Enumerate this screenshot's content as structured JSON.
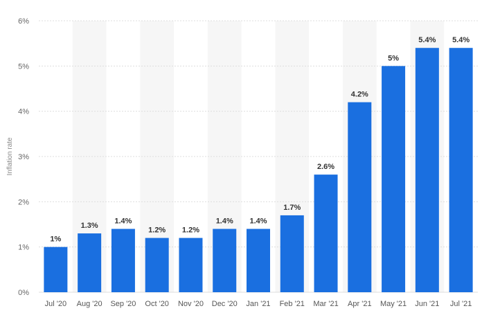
{
  "chart_data": {
    "type": "bar",
    "title": "",
    "xlabel": "",
    "ylabel": "Inflation rate",
    "categories": [
      "Jul '20",
      "Aug '20",
      "Sep '20",
      "Oct '20",
      "Nov '20",
      "Dec '20",
      "Jan '21",
      "Feb '21",
      "Mar '21",
      "Apr '21",
      "May '21",
      "Jun '21",
      "Jul '21"
    ],
    "values": [
      1,
      1.3,
      1.4,
      1.2,
      1.2,
      1.4,
      1.4,
      1.7,
      2.6,
      4.2,
      5,
      5.4,
      5.4
    ],
    "value_labels": [
      "1%",
      "1.3%",
      "1.4%",
      "1.2%",
      "1.2%",
      "1.4%",
      "1.4%",
      "1.7%",
      "2.6%",
      "4.2%",
      "5%",
      "5.4%",
      "5.4%"
    ],
    "y_ticks": [
      "0%",
      "1%",
      "2%",
      "3%",
      "4%",
      "5%",
      "6%"
    ],
    "ylim": [
      0,
      6
    ],
    "grid": true,
    "legend": "none",
    "bar_color": "#1a6fe0",
    "band_color": "#f6f6f6",
    "grid_color": "#dddddd"
  }
}
